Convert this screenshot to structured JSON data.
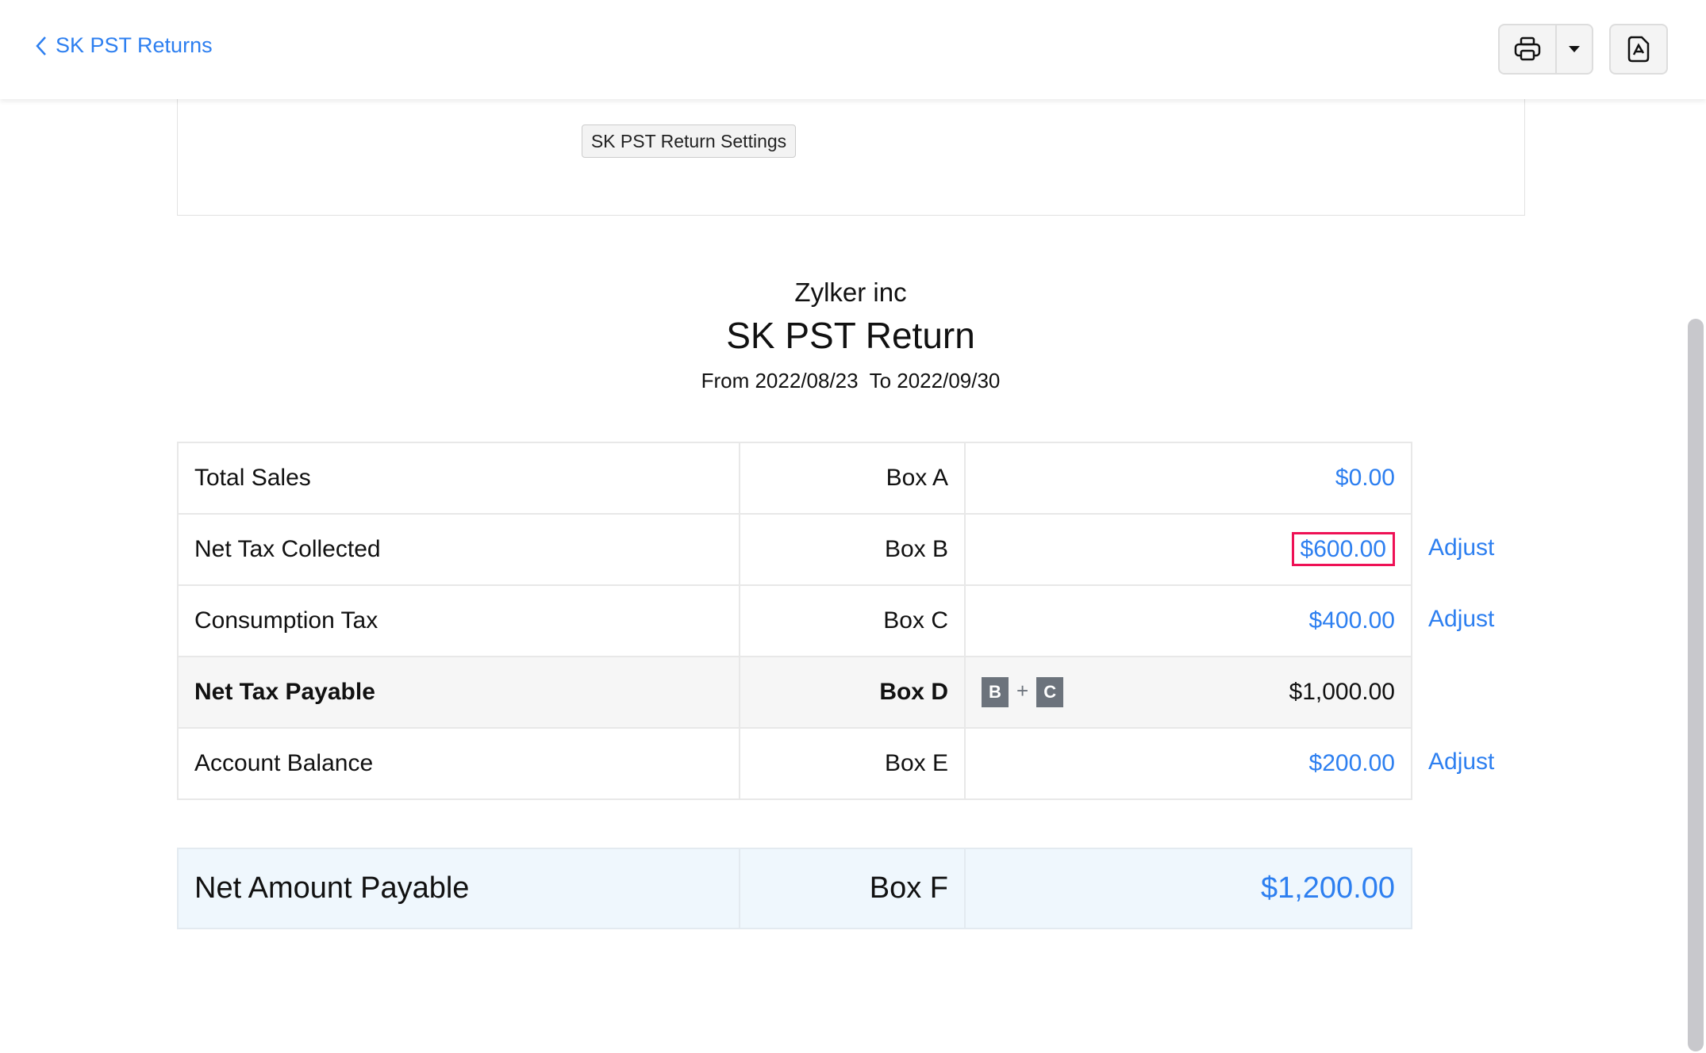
{
  "header": {
    "back_label": "SK PST Returns",
    "print_icon": "printer-icon",
    "dropdown_icon": "caret-down-icon",
    "pdf_icon": "pdf-icon"
  },
  "panel": {
    "settings_button": "SK PST Return Settings"
  },
  "report": {
    "company": "Zylker inc",
    "title": "SK PST Return",
    "period": "From 2022/08/23  To 2022/09/30"
  },
  "rows": [
    {
      "label": "Total Sales",
      "box": "Box A",
      "amount": "$0.00"
    },
    {
      "label": "Net Tax Collected",
      "box": "Box B",
      "amount": "$600.00",
      "action": "Adjust"
    },
    {
      "label": "Consumption Tax",
      "box": "Box C",
      "amount": "$400.00",
      "action": "Adjust"
    },
    {
      "label": "Net Tax Payable",
      "box": "Box D",
      "formula": [
        "B",
        "+",
        "C"
      ],
      "amount": "$1,000.00"
    },
    {
      "label": "Account Balance",
      "box": "Box E",
      "amount": "$200.00",
      "action": "Adjust"
    }
  ],
  "net": {
    "label": "Net Amount Payable",
    "box": "Box F",
    "amount": "$1,200.00"
  },
  "colors": {
    "link": "#2d7ff0",
    "highlight": "#ee1155",
    "badge": "#6c737c"
  }
}
